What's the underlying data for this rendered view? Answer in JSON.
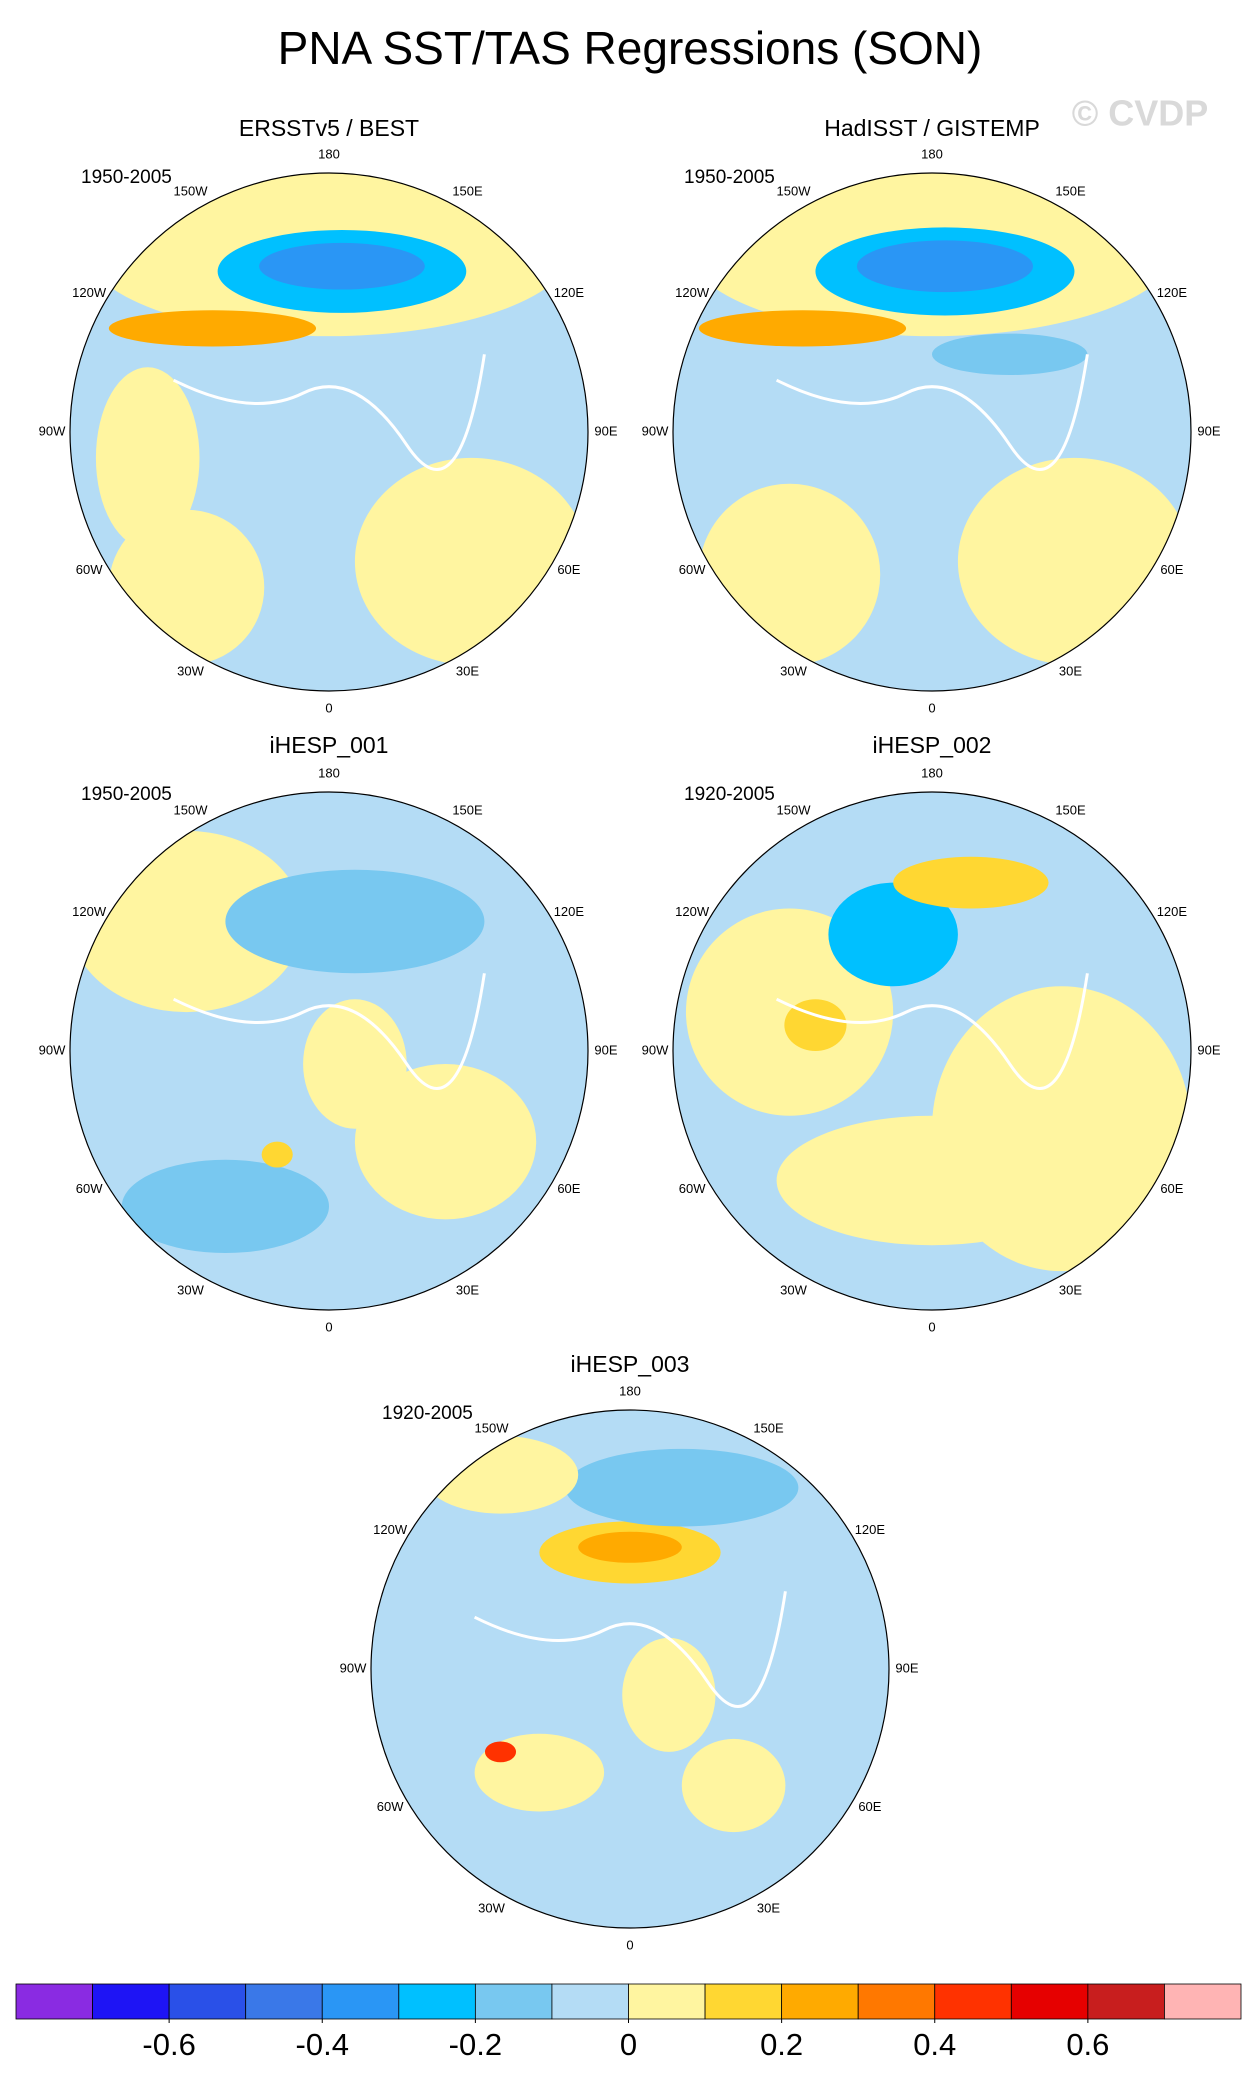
{
  "title": "PNA SST/TAS Regressions (SON)",
  "watermark": "© CVDP",
  "longitude_labels": [
    "180",
    "150E",
    "120E",
    "90E",
    "60E",
    "30E",
    "0",
    "30W",
    "60W",
    "90W",
    "120W",
    "150W"
  ],
  "panels": [
    {
      "title": "ERSSTv5 / BEST",
      "period": "1950-2005"
    },
    {
      "title": "HadISST / GISTEMP",
      "period": "1950-2005"
    },
    {
      "title": "iHESP_001",
      "period": "1950-2005"
    },
    {
      "title": "iHESP_002",
      "period": "1920-2005"
    },
    {
      "title": "iHESP_003",
      "period": "1920-2005"
    }
  ],
  "colorbar": {
    "colors": [
      "#8a2be2",
      "#1e14f5",
      "#2a50e8",
      "#3a78e8",
      "#2a96f5",
      "#00c0ff",
      "#78c8f0",
      "#b4dcf5",
      "#fff5a0",
      "#ffd732",
      "#ffaa00",
      "#ff7800",
      "#ff3200",
      "#e60000",
      "#c81e1e",
      "#ffb4b4"
    ],
    "levels": [
      -0.7,
      -0.6,
      -0.5,
      -0.4,
      -0.3,
      -0.2,
      -0.1,
      0,
      0.1,
      0.2,
      0.3,
      0.4,
      0.5,
      0.6,
      0.7
    ],
    "ticks": [
      -0.6,
      -0.4,
      -0.2,
      0,
      0.2,
      0.4,
      0.6
    ]
  }
}
